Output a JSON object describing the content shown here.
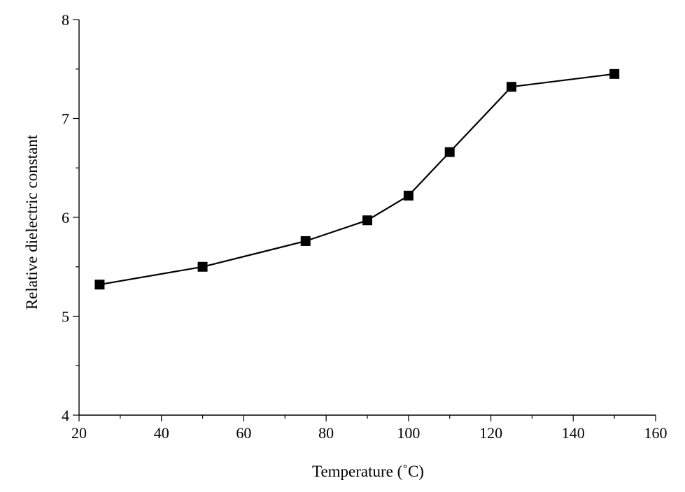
{
  "chart_data": {
    "type": "line",
    "title": "",
    "xlabel": "Temperature (˚C)",
    "ylabel": "Relative dielectric constant",
    "xlim": [
      20,
      160
    ],
    "ylim": [
      4,
      8
    ],
    "x_ticks": [
      20,
      40,
      60,
      80,
      100,
      120,
      140,
      160
    ],
    "y_ticks": [
      4,
      5,
      6,
      7,
      8
    ],
    "grid": false,
    "legend": "none",
    "marker": "filled-square",
    "line_color": "#000000",
    "series": [
      {
        "x": [
          25,
          50,
          75,
          90,
          100,
          110,
          125,
          150
        ],
        "y": [
          5.32,
          5.5,
          5.76,
          5.97,
          6.22,
          6.66,
          7.32,
          7.45
        ]
      }
    ]
  }
}
